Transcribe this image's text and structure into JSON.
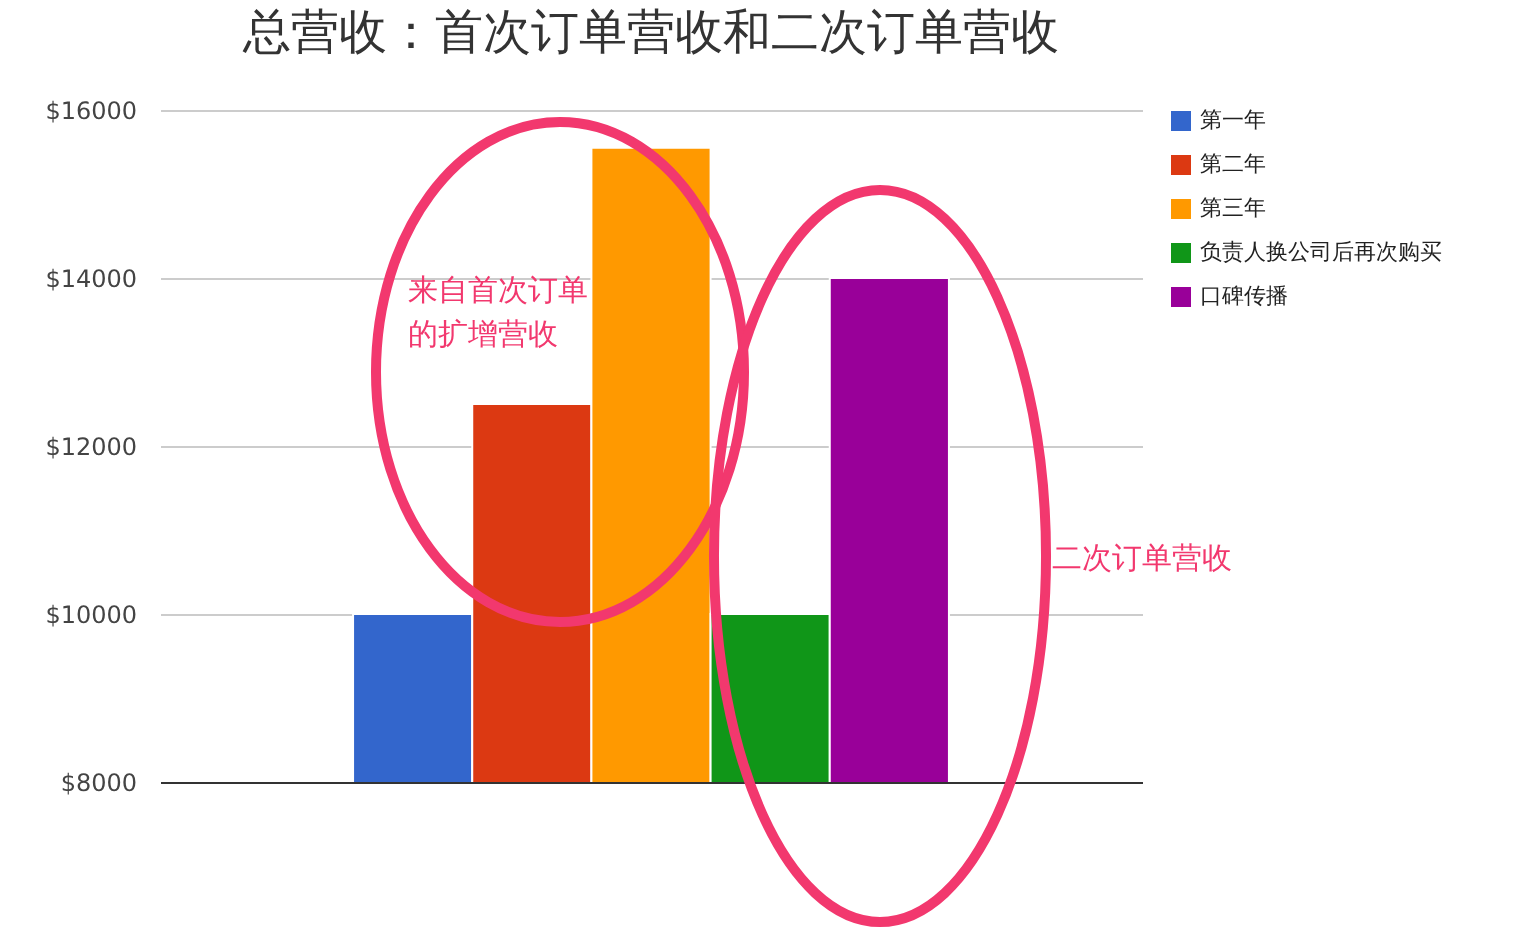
{
  "chart_data": {
    "type": "bar",
    "title": "总营收：首次订单营收和二次订单营收",
    "categories": [
      null
    ],
    "series": [
      {
        "name": "第一年",
        "color": "#3366cc",
        "values": [
          10000
        ]
      },
      {
        "name": "第二年",
        "color": "#dc3912",
        "values": [
          12500
        ]
      },
      {
        "name": "第三年",
        "color": "#ff9900",
        "values": [
          15550
        ]
      },
      {
        "name": "负责人换公司后再次购买",
        "color": "#109618",
        "values": [
          10000
        ]
      },
      {
        "name": "口碑传播",
        "color": "#990099",
        "values": [
          14000
        ]
      }
    ],
    "ylim": [
      8000,
      16000
    ],
    "yticks": [
      {
        "value": 8000,
        "label": "$8000"
      },
      {
        "value": 10000,
        "label": "$10000"
      },
      {
        "value": 12000,
        "label": "$12000"
      },
      {
        "value": 14000,
        "label": "$14000"
      },
      {
        "value": 16000,
        "label": "$16000"
      }
    ],
    "grid": "y",
    "legend": "right",
    "tick_labels": "y",
    "annotations": [
      "来自首次订单的扩增营收",
      "二次订单营收"
    ]
  }
}
